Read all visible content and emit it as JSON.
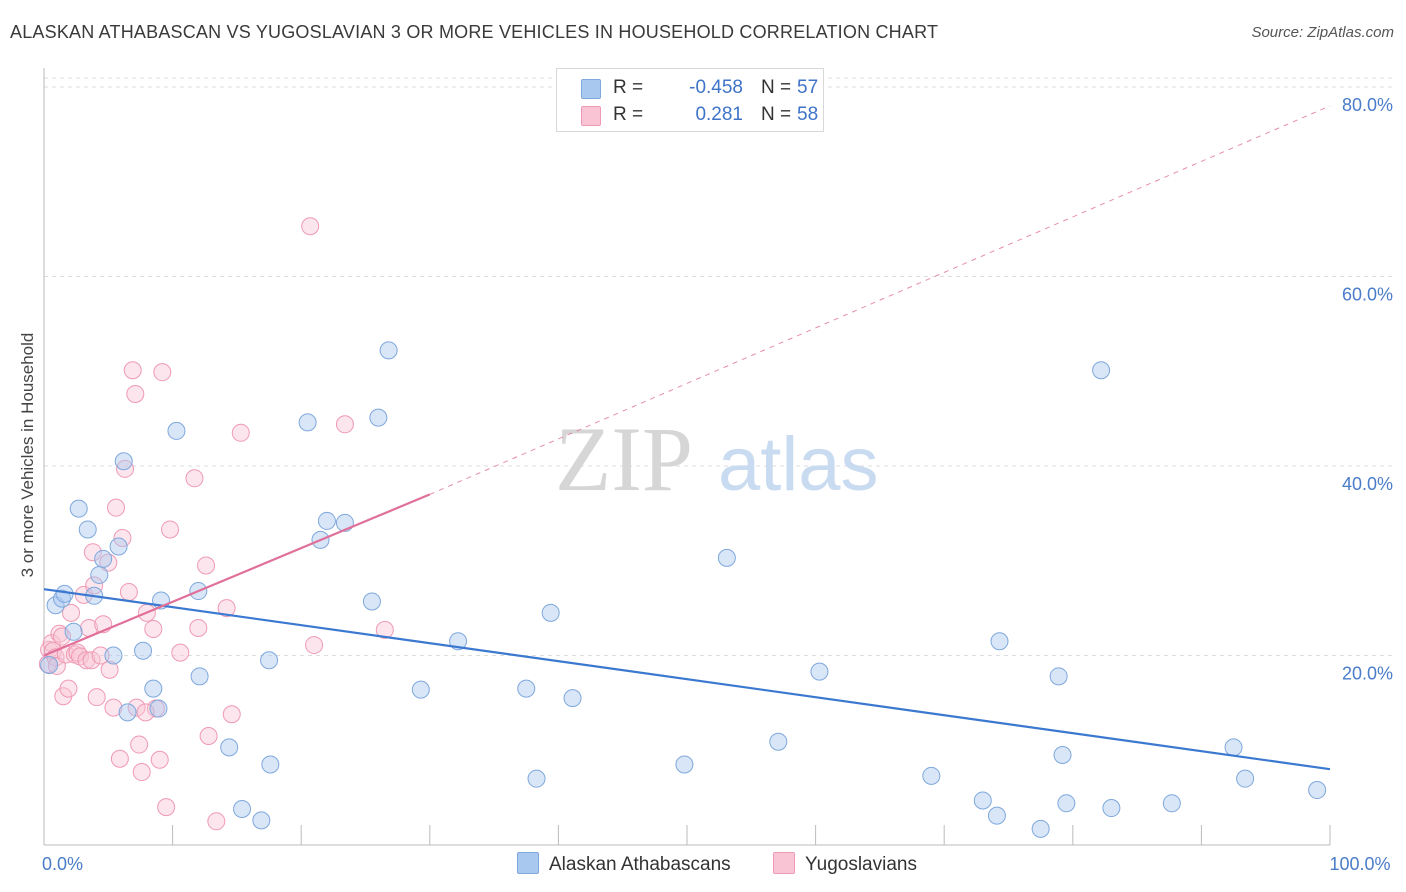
{
  "title": "ALASKAN ATHABASCAN VS YUGOSLAVIAN 3 OR MORE VEHICLES IN HOUSEHOLD CORRELATION CHART",
  "source": "Source: ZipAtlas.com",
  "watermark": {
    "zip": "ZIP",
    "atlas": "atlas"
  },
  "stats": [
    {
      "r_label": "R =",
      "r_value": "-0.458",
      "n_label": "N =",
      "n_value": "57",
      "color": "#a8c8f0",
      "border": "#7fa8dc"
    },
    {
      "r_label": "R =",
      "r_value": "0.281",
      "n_label": "N =",
      "n_value": "58",
      "color": "#f9c5d5",
      "border": "#ef9ab5"
    }
  ],
  "legend": [
    {
      "label": "Alaskan Athabascans",
      "color": "#a8c8f0",
      "border": "#7fa8dc"
    },
    {
      "label": "Yugoslavians",
      "color": "#f9c5d5",
      "border": "#ef9ab5"
    }
  ],
  "colors": {
    "blue_fill": "rgba(168,200,240,0.45)",
    "blue_stroke": "#7fa8dc",
    "blue_line": "#3b78d0",
    "pink_fill": "rgba(249,197,213,0.45)",
    "pink_stroke": "#ef9ab5",
    "pink_line": "#e0709a",
    "grid": "#dddddd",
    "tick_text": "#4a7cc9"
  },
  "chart_data": {
    "type": "scatter",
    "title": "ALASKAN ATHABASCAN VS YUGOSLAVIAN 3 OR MORE VEHICLES IN HOUSEHOLD CORRELATION CHART",
    "xlabel": "",
    "ylabel": "3 or more Vehicles in Household",
    "xlim": [
      0,
      100
    ],
    "ylim": [
      0,
      82
    ],
    "x_ticks": [
      {
        "value": 0,
        "label": "0.0%"
      },
      {
        "value": 100,
        "label": "100.0%"
      }
    ],
    "y_ticks": [
      {
        "value": 20,
        "label": "20.0%"
      },
      {
        "value": 40,
        "label": "40.0%"
      },
      {
        "value": 60,
        "label": "60.0%"
      },
      {
        "value": 80,
        "label": "80.0%"
      }
    ],
    "series": [
      {
        "name": "Alaskan Athabascans",
        "points": [
          [
            0.4,
            19.0
          ],
          [
            0.9,
            25.3
          ],
          [
            1.4,
            26.0
          ],
          [
            1.6,
            26.5
          ],
          [
            2.3,
            22.5
          ],
          [
            2.7,
            35.5
          ],
          [
            3.4,
            33.3
          ],
          [
            3.9,
            26.3
          ],
          [
            4.3,
            28.5
          ],
          [
            4.6,
            30.2
          ],
          [
            5.4,
            20.0
          ],
          [
            5.8,
            31.5
          ],
          [
            6.2,
            40.5
          ],
          [
            6.5,
            14.0
          ],
          [
            7.7,
            20.5
          ],
          [
            8.5,
            16.5
          ],
          [
            8.9,
            14.4
          ],
          [
            9.1,
            25.8
          ],
          [
            10.3,
            43.7
          ],
          [
            12.0,
            26.8
          ],
          [
            12.1,
            17.8
          ],
          [
            14.4,
            10.3
          ],
          [
            15.4,
            3.8
          ],
          [
            16.9,
            2.6
          ],
          [
            17.5,
            19.5
          ],
          [
            17.6,
            8.5
          ],
          [
            20.5,
            44.6
          ],
          [
            21.5,
            32.2
          ],
          [
            22.0,
            34.2
          ],
          [
            23.4,
            34.0
          ],
          [
            25.5,
            25.7
          ],
          [
            26.0,
            45.1
          ],
          [
            26.8,
            52.2
          ],
          [
            29.3,
            16.4
          ],
          [
            32.2,
            21.5
          ],
          [
            37.5,
            16.5
          ],
          [
            38.3,
            7.0
          ],
          [
            39.4,
            24.5
          ],
          [
            41.1,
            15.5
          ],
          [
            49.8,
            8.5
          ],
          [
            53.1,
            30.3
          ],
          [
            57.1,
            10.9
          ],
          [
            60.3,
            18.3
          ],
          [
            69.0,
            7.3
          ],
          [
            73.0,
            4.7
          ],
          [
            74.1,
            3.1
          ],
          [
            74.3,
            21.5
          ],
          [
            77.5,
            1.7
          ],
          [
            78.9,
            17.8
          ],
          [
            79.2,
            9.5
          ],
          [
            79.5,
            4.4
          ],
          [
            82.2,
            50.1
          ],
          [
            83.0,
            3.9
          ],
          [
            87.7,
            4.4
          ],
          [
            92.5,
            10.3
          ],
          [
            93.4,
            7.0
          ],
          [
            99.0,
            5.8
          ]
        ]
      },
      {
        "name": "Yugoslavians",
        "points": [
          [
            0.3,
            19.1
          ],
          [
            0.4,
            20.6
          ],
          [
            0.6,
            21.3
          ],
          [
            0.7,
            20.5
          ],
          [
            0.9,
            19.8
          ],
          [
            1.0,
            18.9
          ],
          [
            1.2,
            22.3
          ],
          [
            1.4,
            22.0
          ],
          [
            1.5,
            15.7
          ],
          [
            1.7,
            20.1
          ],
          [
            1.9,
            16.5
          ],
          [
            2.1,
            24.5
          ],
          [
            2.4,
            20.1
          ],
          [
            2.6,
            20.3
          ],
          [
            2.8,
            19.9
          ],
          [
            3.1,
            26.4
          ],
          [
            3.3,
            19.5
          ],
          [
            3.5,
            22.9
          ],
          [
            3.7,
            19.5
          ],
          [
            3.8,
            30.9
          ],
          [
            3.9,
            27.4
          ],
          [
            4.1,
            15.6
          ],
          [
            4.4,
            20.0
          ],
          [
            4.6,
            23.3
          ],
          [
            5.0,
            29.8
          ],
          [
            5.1,
            18.5
          ],
          [
            5.4,
            14.5
          ],
          [
            5.6,
            35.6
          ],
          [
            5.9,
            9.1
          ],
          [
            6.1,
            32.4
          ],
          [
            6.3,
            39.7
          ],
          [
            6.6,
            26.7
          ],
          [
            6.9,
            50.1
          ],
          [
            7.1,
            47.6
          ],
          [
            7.2,
            14.5
          ],
          [
            7.4,
            10.6
          ],
          [
            7.6,
            7.7
          ],
          [
            8.0,
            24.5
          ],
          [
            8.5,
            22.8
          ],
          [
            8.7,
            14.4
          ],
          [
            9.0,
            9.0
          ],
          [
            9.2,
            49.9
          ],
          [
            9.5,
            4.0
          ],
          [
            9.8,
            33.3
          ],
          [
            10.6,
            20.3
          ],
          [
            11.7,
            38.7
          ],
          [
            12.0,
            22.9
          ],
          [
            12.6,
            29.5
          ],
          [
            13.4,
            2.5
          ],
          [
            14.2,
            25.0
          ],
          [
            14.6,
            13.8
          ],
          [
            15.3,
            43.5
          ],
          [
            20.7,
            65.3
          ],
          [
            21.0,
            21.1
          ],
          [
            23.4,
            44.4
          ],
          [
            26.5,
            22.7
          ],
          [
            12.8,
            11.5
          ],
          [
            7.9,
            14.0
          ]
        ]
      }
    ],
    "trend_lines": [
      {
        "series": "Alaskan Athabascans",
        "x0": 0,
        "y0": 27.0,
        "x1": 100,
        "y1": 8.0,
        "style": "solid"
      },
      {
        "series": "Yugoslavians",
        "x0": 0,
        "y0": 20.0,
        "x1": 30,
        "y1": 37.0,
        "style": "solid"
      },
      {
        "series": "Yugoslavians",
        "x0": 30,
        "y0": 37.0,
        "x1": 100,
        "y1": 78.0,
        "style": "dashed"
      }
    ]
  }
}
